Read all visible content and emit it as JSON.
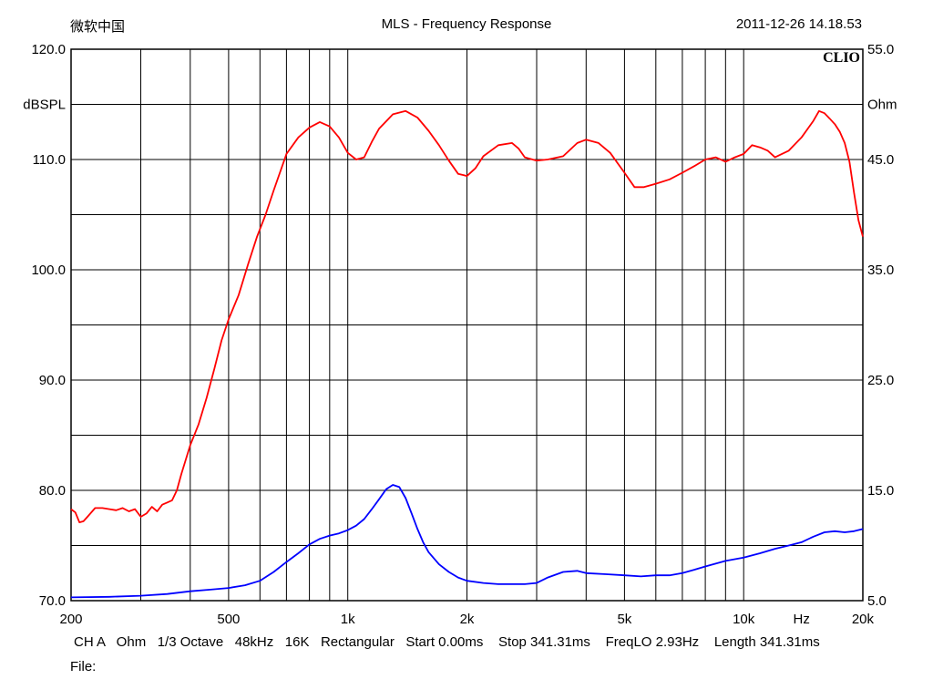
{
  "header": {
    "left": "微软中国",
    "title": "MLS - Frequency Response",
    "datetime": "2011-12-26 14.18.53"
  },
  "brand": "CLIO",
  "footer": {
    "settings": "CH A   Ohm   1/3 Octave   48kHz   16K   Rectangular   Start 0.00ms    Stop 341.31ms    FreqLO 2.93Hz    Length 341.31ms",
    "file_label": "File:"
  },
  "colors": {
    "spl": "#ff0000",
    "impedance": "#0000ff",
    "grid": "#000000",
    "background": "#ffffff"
  },
  "chart_data": {
    "type": "line",
    "title": "MLS - Frequency Response",
    "xlabel": "Hz",
    "ylabel": "dBSPL",
    "y2label": "Ohm",
    "x_scale": "log",
    "xlim": [
      200,
      20000
    ],
    "ylim": [
      70,
      120
    ],
    "y2lim": [
      5,
      55
    ],
    "grid": true,
    "x_ticks": [
      200,
      500,
      1000,
      2000,
      5000,
      10000,
      20000
    ],
    "x_tick_labels": [
      "200",
      "500",
      "1k",
      "2k",
      "5k",
      "10k",
      "20k"
    ],
    "x_unit_label": "Hz",
    "y_ticks": [
      70,
      80,
      90,
      100,
      110,
      120
    ],
    "y_tick_labels": [
      "70.0",
      "80.0",
      "90.0",
      "100.0",
      "110.0",
      "120.0"
    ],
    "y2_ticks": [
      5,
      15,
      25,
      35,
      45,
      55
    ],
    "y2_tick_labels": [
      "5.0",
      "15.0",
      "25.0",
      "35.0",
      "45.0",
      "55.0"
    ],
    "series": [
      {
        "axis": "left",
        "color": "#ff0000",
        "x": [
          200,
          205,
          210,
          215,
          220,
          230,
          240,
          250,
          260,
          270,
          280,
          290,
          300,
          310,
          320,
          330,
          340,
          350,
          360,
          370,
          380,
          400,
          420,
          440,
          460,
          480,
          500,
          530,
          560,
          590,
          620,
          650,
          700,
          750,
          800,
          850,
          900,
          950,
          1000,
          1050,
          1100,
          1150,
          1200,
          1300,
          1400,
          1500,
          1600,
          1700,
          1800,
          1900,
          2000,
          2100,
          2200,
          2400,
          2600,
          2700,
          2800,
          3000,
          3200,
          3500,
          3800,
          4000,
          4300,
          4600,
          5000,
          5300,
          5600,
          6000,
          6500,
          7000,
          7500,
          8000,
          8500,
          9000,
          9500,
          10000,
          10500,
          11000,
          11500,
          12000,
          13000,
          14000,
          15000,
          15500,
          16000,
          16500,
          17000,
          17500,
          18000,
          18500,
          19000,
          19500,
          20000
        ],
        "y": [
          78.3,
          78.0,
          77.1,
          77.2,
          77.6,
          78.4,
          78.4,
          78.3,
          78.2,
          78.4,
          78.1,
          78.3,
          77.6,
          77.9,
          78.5,
          78.1,
          78.7,
          78.9,
          79.1,
          80.0,
          81.5,
          84.1,
          86.0,
          88.4,
          91.0,
          93.6,
          95.5,
          97.7,
          100.5,
          103.0,
          105.0,
          107.2,
          110.5,
          112.0,
          112.9,
          113.4,
          113.0,
          112.0,
          110.6,
          110.0,
          110.2,
          111.6,
          112.8,
          114.1,
          114.4,
          113.8,
          112.6,
          111.3,
          109.9,
          108.7,
          108.5,
          109.2,
          110.3,
          111.3,
          111.5,
          111.0,
          110.2,
          109.9,
          110.0,
          110.3,
          111.5,
          111.8,
          111.5,
          110.6,
          108.8,
          107.5,
          107.5,
          107.8,
          108.2,
          108.8,
          109.4,
          110.0,
          110.2,
          109.8,
          110.2,
          110.5,
          111.3,
          111.1,
          110.8,
          110.2,
          110.8,
          112.0,
          113.5,
          114.4,
          114.2,
          113.7,
          113.2,
          112.5,
          111.5,
          109.8,
          107.0,
          104.5,
          103.0
        ]
      },
      {
        "axis": "right",
        "color": "#0000ff",
        "x": [
          200,
          250,
          300,
          350,
          400,
          450,
          500,
          550,
          600,
          650,
          700,
          750,
          800,
          850,
          900,
          950,
          1000,
          1050,
          1100,
          1150,
          1200,
          1250,
          1300,
          1350,
          1400,
          1450,
          1500,
          1550,
          1600,
          1700,
          1800,
          1900,
          2000,
          2200,
          2400,
          2600,
          2800,
          3000,
          3200,
          3500,
          3800,
          4000,
          4500,
          5000,
          5500,
          6000,
          6500,
          7000,
          7500,
          8000,
          9000,
          10000,
          11000,
          12000,
          13000,
          14000,
          15000,
          16000,
          17000,
          18000,
          19000,
          20000
        ],
        "y": [
          5.3,
          5.35,
          5.45,
          5.6,
          5.85,
          6.0,
          6.15,
          6.4,
          6.8,
          7.6,
          8.5,
          9.3,
          10.1,
          10.6,
          10.9,
          11.1,
          11.4,
          11.8,
          12.4,
          13.3,
          14.2,
          15.1,
          15.5,
          15.3,
          14.3,
          12.9,
          11.5,
          10.3,
          9.4,
          8.3,
          7.6,
          7.1,
          6.8,
          6.6,
          6.5,
          6.5,
          6.5,
          6.6,
          7.1,
          7.6,
          7.7,
          7.5,
          7.4,
          7.3,
          7.2,
          7.3,
          7.3,
          7.5,
          7.8,
          8.1,
          8.6,
          8.9,
          9.3,
          9.7,
          10.0,
          10.3,
          10.8,
          11.2,
          11.3,
          11.2,
          11.3,
          11.5
        ]
      }
    ]
  }
}
